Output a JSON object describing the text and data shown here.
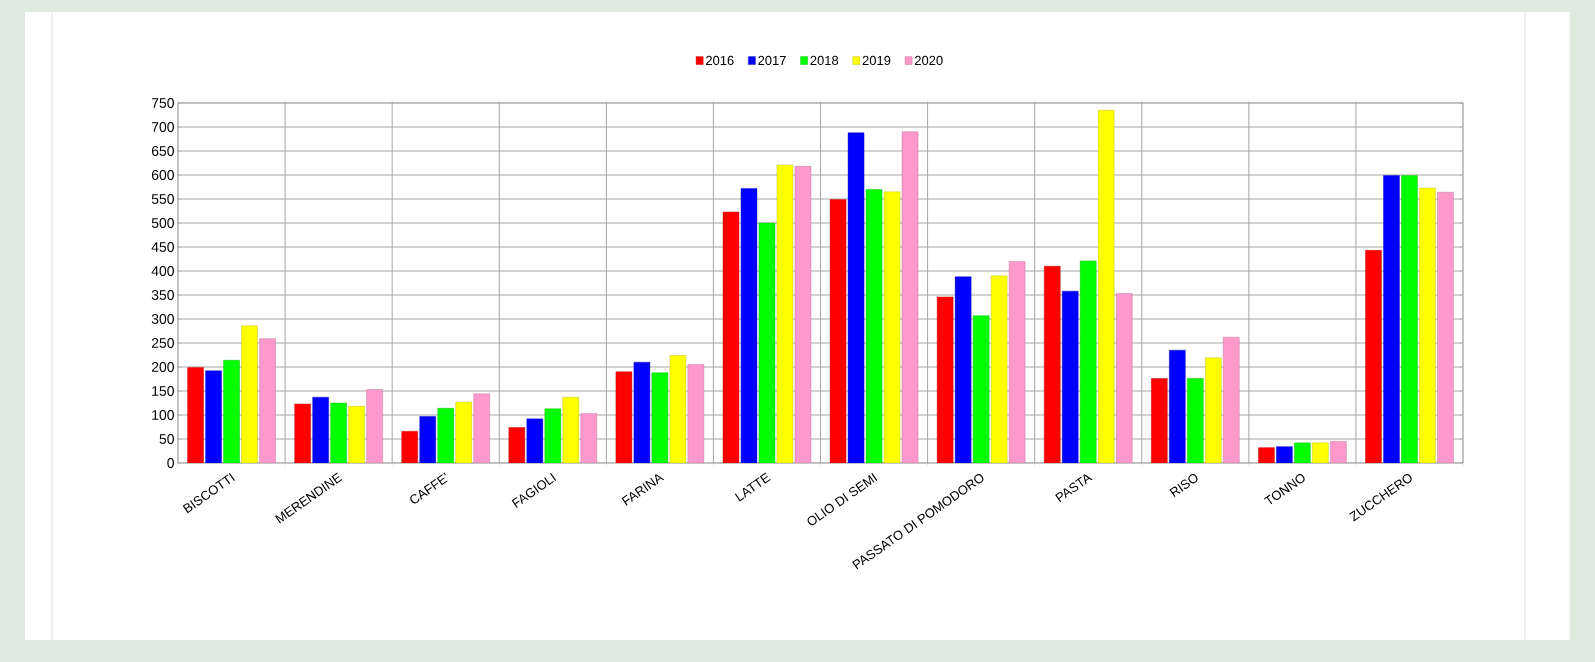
{
  "chart_data": {
    "type": "bar",
    "categories": [
      "BISCOTTI",
      "MERENDINE",
      "CAFFE'",
      "FAGIOLI",
      "FARINA",
      "LATTE",
      "OLIO DI SEMI",
      "PASSATO DI POMODORO",
      "PASTA",
      "RISO",
      "TONNO",
      "ZUCCHERO"
    ],
    "series": [
      {
        "name": "2016",
        "color": "#ff0000",
        "values": [
          199,
          123,
          66,
          74,
          190,
          523,
          549,
          346,
          410,
          176,
          32,
          443
        ]
      },
      {
        "name": "2017",
        "color": "#0000ff",
        "values": [
          192,
          137,
          97,
          92,
          210,
          572,
          688,
          388,
          358,
          235,
          34,
          599
        ]
      },
      {
        "name": "2018",
        "color": "#00ff00",
        "values": [
          214,
          125,
          114,
          113,
          188,
          500,
          570,
          307,
          421,
          176,
          42,
          599
        ]
      },
      {
        "name": "2019",
        "color": "#ffff00",
        "values": [
          286,
          118,
          127,
          137,
          224,
          621,
          565,
          390,
          735,
          219,
          42,
          573
        ]
      },
      {
        "name": "2020",
        "color": "#ff99cc",
        "values": [
          259,
          153,
          144,
          103,
          205,
          618,
          690,
          420,
          353,
          262,
          45,
          564
        ]
      }
    ],
    "ylim": [
      0,
      750
    ],
    "yticks": [
      0,
      50,
      100,
      150,
      200,
      250,
      300,
      350,
      400,
      450,
      500,
      550,
      600,
      650,
      700,
      750
    ],
    "grid": true,
    "legend": "top"
  }
}
